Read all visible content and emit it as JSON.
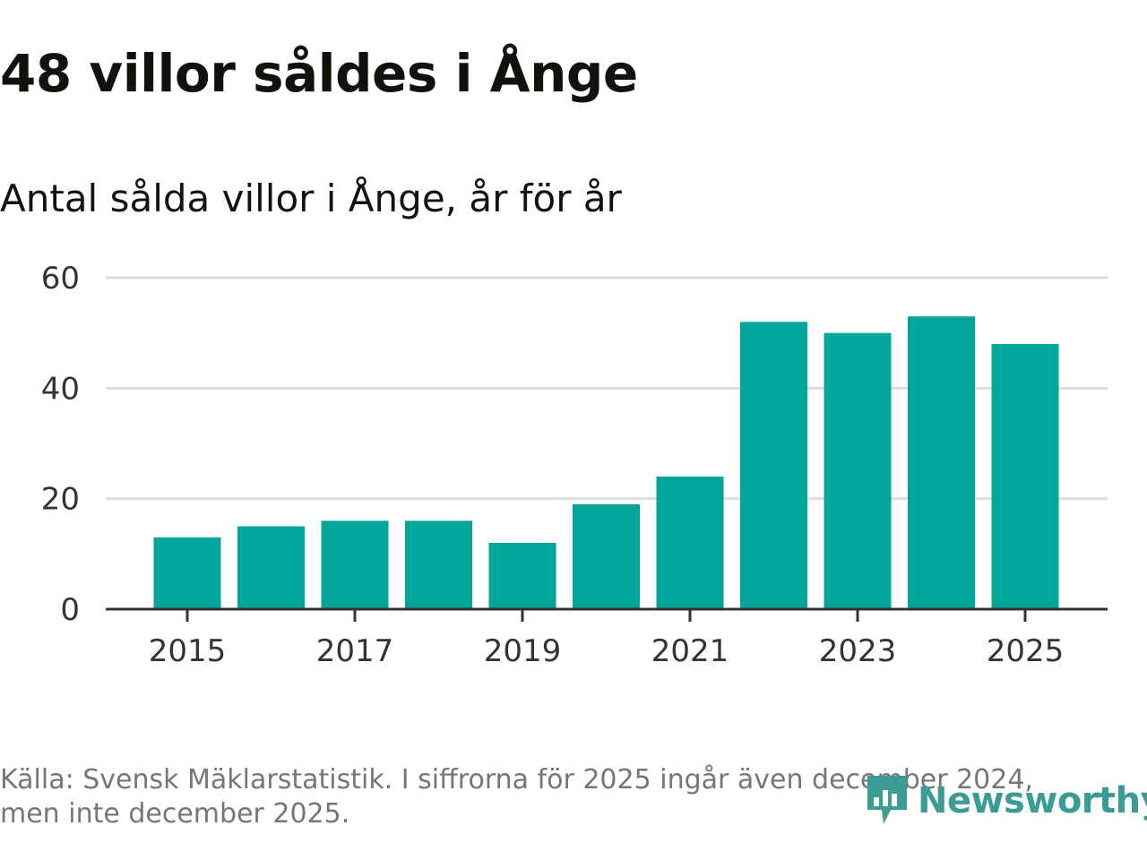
{
  "title": "48 villor såldes i Ånge",
  "subtitle": "Antal sålda villor i Ånge, år för år",
  "footnote": {
    "line1": "Källa: Svensk Mäklarstatistik. I siffrorna för 2025 ingår även december 2024,",
    "line2": "men inte december 2025."
  },
  "logo": {
    "text": "Newsworthy",
    "icon": "newsworthy-chart-icon"
  },
  "colors": {
    "bar": "#00a69a",
    "grid": "#dddddd",
    "axis": "#333333",
    "logo": "#3a9c95"
  },
  "chart_data": {
    "type": "bar",
    "title": "Antal sålda villor i Ånge, år för år",
    "xlabel": "",
    "ylabel": "",
    "categories": [
      "2015",
      "2016",
      "2017",
      "2018",
      "2019",
      "2020",
      "2021",
      "2022",
      "2023",
      "2024",
      "2025"
    ],
    "values": [
      13,
      15,
      16,
      16,
      12,
      19,
      24,
      52,
      50,
      53,
      48
    ],
    "ylim": [
      0,
      60
    ],
    "yticks": [
      0,
      20,
      40,
      60
    ],
    "xtick_labels": [
      "2015",
      "2017",
      "2019",
      "2021",
      "2023",
      "2025"
    ],
    "grid": true,
    "legend": "none"
  }
}
